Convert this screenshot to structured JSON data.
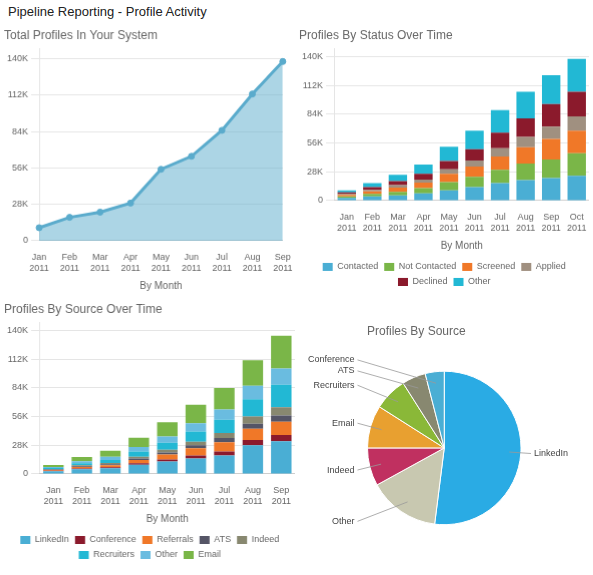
{
  "title": "Pipeline Reporting - Profile Activity",
  "chart_data": [
    {
      "type": "area",
      "title": "Total Profiles In Your System",
      "xlabel": "By Month",
      "categories": [
        "Jan\n2011",
        "Feb\n2011",
        "Mar\n2011",
        "Apr\n2011",
        "May\n2011",
        "Jun\n2011",
        "Jul\n2011",
        "Aug\n2011",
        "Sep\n2011"
      ],
      "values": [
        10000,
        18000,
        22000,
        29000,
        55000,
        65000,
        85000,
        113000,
        138000
      ],
      "color": "#5aabcc",
      "marker": "circle",
      "ylim": [
        0,
        148000
      ],
      "yticks": [
        0,
        {
          "value": 28000,
          "label": "28K"
        },
        {
          "value": 56000,
          "label": "56K"
        },
        {
          "value": 84000,
          "label": "84K"
        },
        {
          "value": 112000,
          "label": "112K"
        },
        {
          "value": 140000,
          "label": "140K"
        }
      ],
      "grid": true
    },
    {
      "type": "bar",
      "title": "Profiles By Status Over Time",
      "xlabel": "By Month",
      "categories": [
        "Jan\n2011",
        "Feb\n2011",
        "Mar\n2011",
        "Apr\n2011",
        "May\n2011",
        "Jun\n2011",
        "Jul\n2011",
        "Aug\n2011",
        "Sep\n2011",
        "Oct\n2011"
      ],
      "series": [
        {
          "name": "Contacted",
          "color": "#4aaed4",
          "values": [
            2500,
            4000,
            5000,
            7000,
            10000,
            13000,
            17000,
            20000,
            22000,
            24000
          ]
        },
        {
          "name": "Not Contacted",
          "color": "#7ab648",
          "values": [
            1500,
            2500,
            3500,
            5000,
            8000,
            10000,
            13000,
            16000,
            18000,
            22000
          ]
        },
        {
          "name": "Screened",
          "color": "#f07828",
          "values": [
            1500,
            2500,
            4000,
            5500,
            8000,
            10000,
            13000,
            16000,
            20000,
            22000
          ]
        },
        {
          "name": "Applied",
          "color": "#a09080",
          "values": [
            1000,
            1500,
            2500,
            3000,
            4500,
            6000,
            8000,
            10000,
            12000,
            14000
          ]
        },
        {
          "name": "Declined",
          "color": "#8b1a2c",
          "values": [
            1500,
            2500,
            4000,
            5500,
            8000,
            11000,
            15000,
            18000,
            22000,
            24000
          ]
        },
        {
          "name": "Other",
          "color": "#22b8d4",
          "values": [
            2000,
            4000,
            6000,
            9000,
            14000,
            18000,
            22000,
            26000,
            28000,
            32000
          ]
        }
      ],
      "stacked": true,
      "legend": "bottom",
      "ylim": [
        0,
        148000
      ],
      "yticks": [
        0,
        {
          "value": 28000,
          "label": "28K"
        },
        {
          "value": 56000,
          "label": "56K"
        },
        {
          "value": 84000,
          "label": "84K"
        },
        {
          "value": 112000,
          "label": "112K"
        },
        {
          "value": 140000,
          "label": "140K"
        }
      ],
      "grid": true
    },
    {
      "type": "bar",
      "title": "Profiles By Source Over Time",
      "xlabel": "By Month",
      "categories": [
        "Jan\n2011",
        "Feb\n2011",
        "Mar\n2011",
        "Apr\n2011",
        "May\n2011",
        "Jun\n2011",
        "Jul\n2011",
        "Aug\n2011",
        "Sep\n2011"
      ],
      "series": [
        {
          "name": "LinkedIn",
          "color": "#4aaed4",
          "values": [
            2500,
            4500,
            5500,
            9000,
            12000,
            15000,
            18000,
            28000,
            32000
          ]
        },
        {
          "name": "Conference",
          "color": "#8b1a2c",
          "values": [
            500,
            800,
            1000,
            1500,
            2000,
            3000,
            4000,
            5000,
            6000
          ]
        },
        {
          "name": "Referrals",
          "color": "#f07828",
          "values": [
            800,
            1500,
            2000,
            3000,
            5000,
            7000,
            9000,
            11000,
            13000
          ]
        },
        {
          "name": "ATS",
          "color": "#555566",
          "values": [
            400,
            700,
            1000,
            1500,
            2000,
            3000,
            4000,
            5000,
            6000
          ]
        },
        {
          "name": "Indeed",
          "color": "#888870",
          "values": [
            500,
            900,
            1200,
            1800,
            2500,
            3500,
            5000,
            7000,
            8000
          ]
        },
        {
          "name": "Recruiters",
          "color": "#22b8d4",
          "values": [
            1000,
            2000,
            3000,
            5000,
            7000,
            10000,
            13000,
            17000,
            22000
          ]
        },
        {
          "name": "Other",
          "color": "#6abce0",
          "values": [
            1000,
            2000,
            3000,
            4500,
            6000,
            8000,
            10000,
            13000,
            16000
          ]
        },
        {
          "name": "Email",
          "color": "#7ab648",
          "values": [
            2000,
            4000,
            6000,
            9000,
            14000,
            18000,
            21000,
            25000,
            32000
          ]
        }
      ],
      "stacked": true,
      "legend": "bottom",
      "ylim": [
        0,
        148000
      ],
      "yticks": [
        0,
        {
          "value": 28000,
          "label": "28K"
        },
        {
          "value": 56000,
          "label": "56K"
        },
        {
          "value": 84000,
          "label": "84K"
        },
        {
          "value": 112000,
          "label": "112K"
        },
        {
          "value": 140000,
          "label": "140K"
        }
      ],
      "grid": true
    },
    {
      "type": "pie",
      "title": "Profiles By Source",
      "categories": [
        "LinkedIn",
        "Other",
        "Indeed",
        "Email",
        "Recruiters",
        "ATS",
        "Conference"
      ],
      "values": [
        52,
        15,
        8,
        9,
        7,
        5,
        4
      ],
      "colors": [
        "#2aabe4",
        "#c8c8b0",
        "#c03060",
        "#e8a030",
        "#8ab838",
        "#888870",
        "#4aaed4"
      ]
    }
  ]
}
